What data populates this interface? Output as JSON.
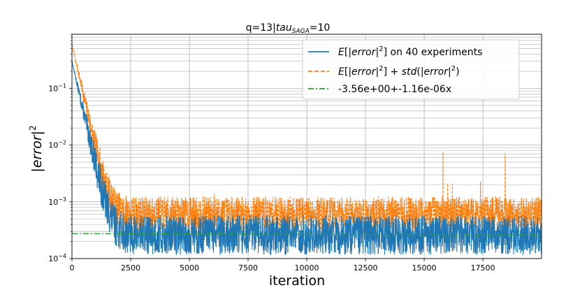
{
  "chart_data": {
    "type": "line",
    "title": "q=13|tau_SAGA=10",
    "title_parts": {
      "prefix": "q=13|",
      "base": "tau",
      "subscript": "SAGA",
      "suffix": "=10"
    },
    "xlabel": "iteration",
    "ylabel_base": "|error|",
    "ylabel_sup": "2",
    "y_scale": "log",
    "xlim": [
      0,
      19999
    ],
    "ylim": [
      0.0001,
      0.9
    ],
    "x_ticks": [
      0,
      2500,
      5000,
      7500,
      10000,
      12500,
      15000,
      17500
    ],
    "x_tick_labels": [
      "0",
      "2500",
      "5000",
      "7500",
      "10000",
      "12500",
      "15000",
      "17500"
    ],
    "y_ticks": [
      0.0001,
      0.001,
      0.01,
      0.1
    ],
    "y_tick_labels_base": [
      "10",
      "10",
      "10",
      "10"
    ],
    "y_tick_labels_exp": [
      "−4",
      "−3",
      "−2",
      "−1"
    ],
    "grid": true,
    "legend_position": "top-right",
    "series": [
      {
        "name": "E[|error|^2] on 40 experiments",
        "legend_parts": {
          "a": "E",
          "b": "[|",
          "c": "error",
          "d": "|",
          "sup": "2",
          "e": "] on 40 experiments"
        },
        "color": "#1f77b4",
        "style": "solid",
        "start_value": 0.3,
        "decay_rate": 0.0042,
        "floor": 0.00026,
        "noise_amplitude": 0.35,
        "samples": [
          [
            0,
            0.3
          ],
          [
            50,
            0.11
          ],
          [
            100,
            0.06
          ],
          [
            200,
            0.03
          ],
          [
            300,
            0.016
          ],
          [
            400,
            0.009
          ],
          [
            500,
            0.0052
          ],
          [
            600,
            0.0031
          ],
          [
            700,
            0.0019
          ],
          [
            800,
            0.0012
          ],
          [
            900,
            0.0008
          ],
          [
            1000,
            0.00055
          ],
          [
            1200,
            0.00035
          ],
          [
            1500,
            0.00028
          ],
          [
            2000,
            0.00026
          ],
          [
            5000,
            0.00026
          ],
          [
            10000,
            0.00025
          ],
          [
            15000,
            0.00025
          ],
          [
            19999,
            0.00024
          ]
        ]
      },
      {
        "name": "E[|error|^2] + std(|error|^2)",
        "legend_parts": {
          "a": "E",
          "b": "[|",
          "c": "error",
          "d": "|",
          "sup": "2",
          "e": "] + ",
          "f": "std",
          "g": "(|",
          "h": "error",
          "i": "|",
          "sup2": "2",
          "j": ")"
        },
        "color": "#ff7f0e",
        "style": "dashed",
        "start_value": 0.6,
        "decay_rate": 0.0042,
        "floor": 0.00062,
        "noise_amplitude": 0.3,
        "spikes": [
          {
            "x": 6050,
            "y": 0.0014
          },
          {
            "x": 15800,
            "y": 0.0075
          },
          {
            "x": 16000,
            "y": 0.0021
          },
          {
            "x": 16200,
            "y": 0.0021
          },
          {
            "x": 17400,
            "y": 0.0023
          },
          {
            "x": 18450,
            "y": 0.0072
          }
        ]
      },
      {
        "name": "-3.56e+00+-1.16e-06x",
        "color": "#2ca02c",
        "style": "dashdot",
        "x_range": [
          0,
          19999
        ],
        "log10_intercept": -3.56,
        "log10_slope": -1.16e-06
      }
    ]
  }
}
